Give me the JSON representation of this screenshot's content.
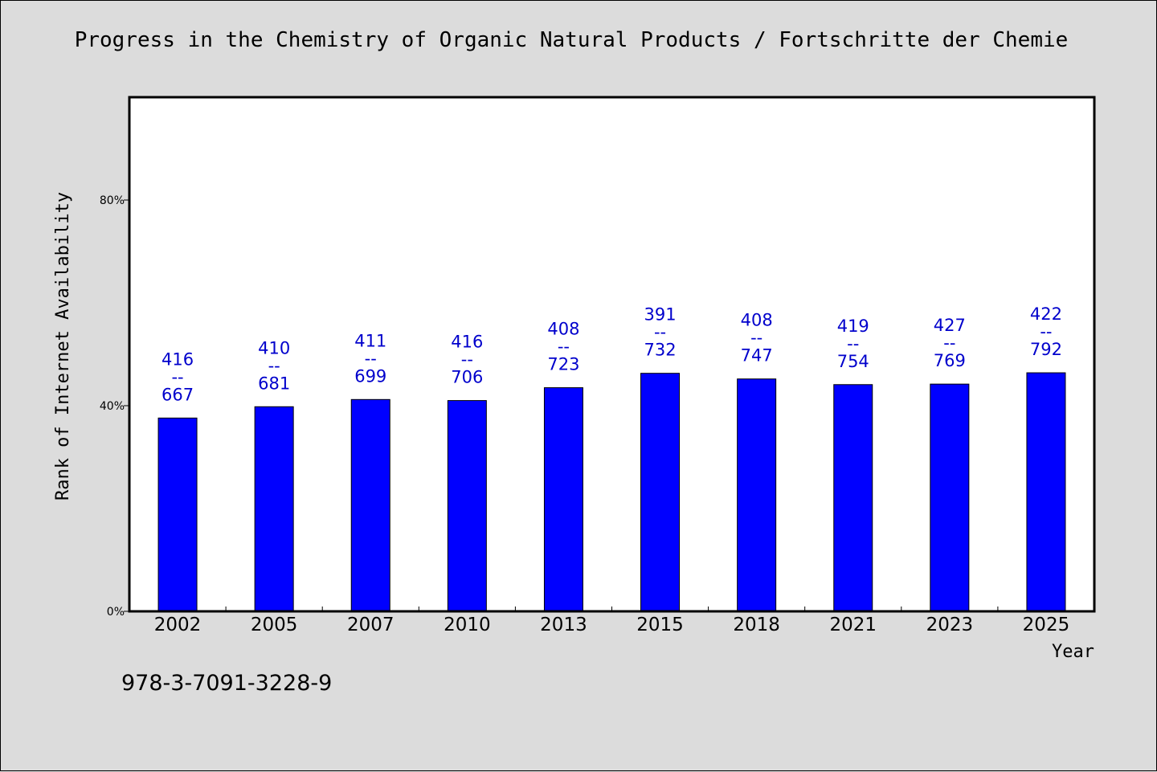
{
  "chart_data": {
    "type": "bar",
    "title": "Progress in the Chemistry of Organic Natural Products / Fortschritte der Chemie",
    "xlabel": "Year",
    "ylabel": "Rank of Internet Availability",
    "categories": [
      "2002",
      "2005",
      "2007",
      "2010",
      "2013",
      "2015",
      "2018",
      "2021",
      "2023",
      "2025"
    ],
    "values": [
      37.6,
      39.8,
      41.2,
      41.0,
      43.5,
      46.3,
      45.2,
      44.1,
      44.2,
      46.4
    ],
    "rank_labels": [
      {
        "rank": "416",
        "sep": "--",
        "total": "667"
      },
      {
        "rank": "410",
        "sep": "--",
        "total": "681"
      },
      {
        "rank": "411",
        "sep": "--",
        "total": "699"
      },
      {
        "rank": "416",
        "sep": "--",
        "total": "706"
      },
      {
        "rank": "408",
        "sep": "--",
        "total": "723"
      },
      {
        "rank": "391",
        "sep": "--",
        "total": "732"
      },
      {
        "rank": "408",
        "sep": "--",
        "total": "747"
      },
      {
        "rank": "419",
        "sep": "--",
        "total": "754"
      },
      {
        "rank": "427",
        "sep": "--",
        "total": "769"
      },
      {
        "rank": "422",
        "sep": "--",
        "total": "792"
      }
    ],
    "ylim": [
      0,
      100
    ],
    "yticks": [
      0,
      40,
      80
    ],
    "ytick_labels": [
      "0%",
      "40%",
      "80%"
    ],
    "grid": false,
    "colors": {
      "bar": "#0000ff",
      "label": "#0000cc",
      "background": "#dcdcdc",
      "plot_background": "#ffffff"
    }
  },
  "footer": {
    "identifier": "978-3-7091-3228-9"
  }
}
